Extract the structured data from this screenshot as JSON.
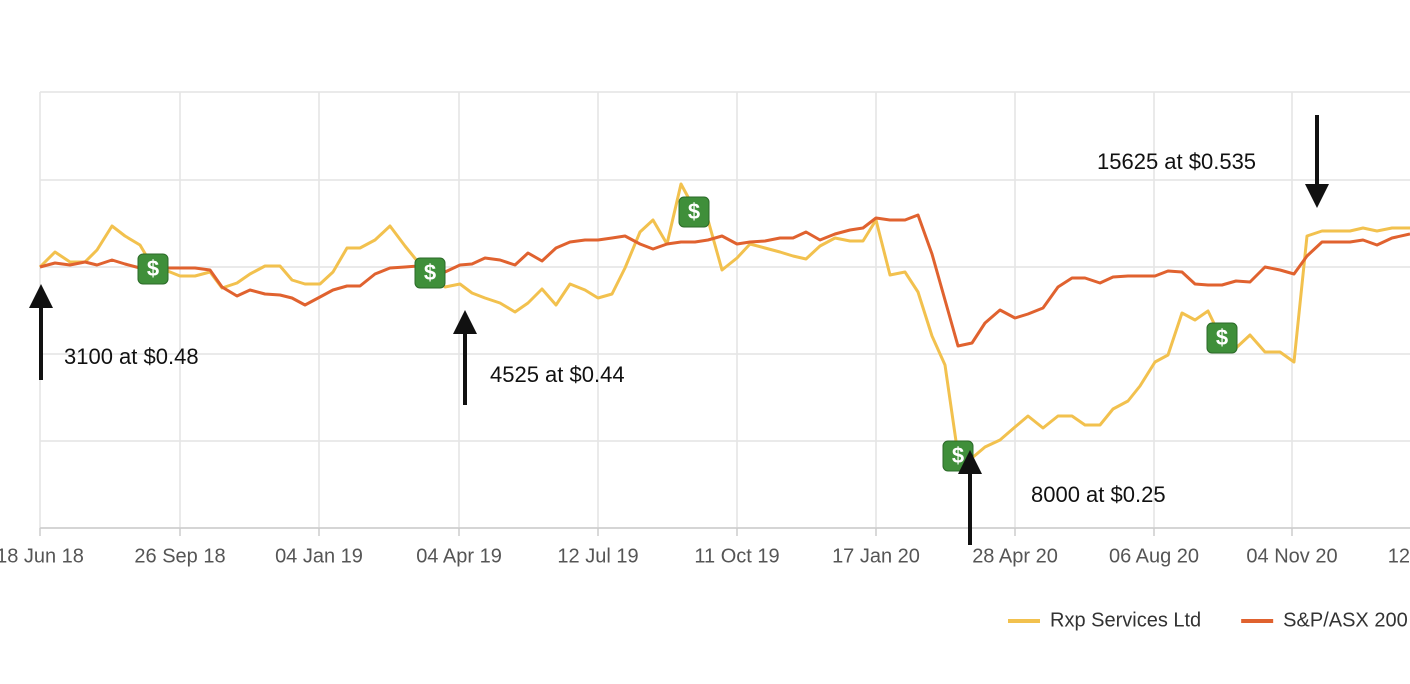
{
  "chart_data": {
    "type": "line",
    "x": [
      0,
      15,
      30,
      45,
      57,
      72,
      85,
      100,
      113,
      125,
      140,
      155,
      170,
      182,
      197,
      210,
      225,
      240,
      252,
      265,
      280,
      293,
      307,
      320,
      335,
      350,
      365,
      378,
      390,
      405,
      420,
      432,
      445,
      460,
      475,
      488,
      502,
      516,
      530,
      545,
      558,
      572,
      585,
      600,
      613,
      627,
      641,
      655,
      668,
      682,
      697,
      710,
      725,
      740,
      753,
      766,
      780,
      795,
      810,
      823,
      836,
      850,
      865,
      878,
      892,
      905,
      918,
      932,
      945,
      960,
      975,
      988,
      1003,
      1018,
      1032,
      1045,
      1060,
      1073,
      1088,
      1100,
      1115,
      1128,
      1142,
      1155,
      1168,
      1182,
      1196,
      1210,
      1225,
      1240,
      1254,
      1267,
      1282,
      1296,
      1310,
      1323,
      1337,
      1352,
      1370
    ],
    "series": [
      {
        "name": "Rxp Services Ltd",
        "color": "#f2c14e",
        "values": [
          261,
          276,
          266,
          266,
          278,
          302,
          292,
          283,
          261,
          258,
          252,
          252,
          256,
          240,
          245,
          254,
          262,
          262,
          248,
          244,
          244,
          256,
          280,
          280,
          288,
          302,
          282,
          266,
          256,
          241,
          244,
          235,
          230,
          225,
          216,
          225,
          239,
          223,
          244,
          238,
          230,
          234,
          260,
          296,
          308,
          284,
          344,
          318,
          308,
          258,
          270,
          284,
          280,
          276,
          272,
          269,
          282,
          290,
          287,
          287,
          308,
          253,
          256,
          236,
          192,
          163,
          73,
          70,
          81,
          88,
          101,
          112,
          100,
          112,
          112,
          103,
          103,
          119,
          127,
          142,
          166,
          173,
          215,
          208,
          217,
          188,
          180,
          193,
          176,
          176,
          166,
          292,
          297,
          297,
          297,
          300,
          297,
          300,
          300
        ]
      },
      {
        "name": "S&P/ASX 200",
        "color": "#e0622f",
        "values": [
          261,
          265,
          263,
          266,
          263,
          268,
          264,
          260,
          260,
          260,
          260,
          260,
          258,
          241,
          232,
          238,
          234,
          233,
          230,
          223,
          231,
          238,
          242,
          242,
          254,
          260,
          261,
          262,
          258,
          256,
          263,
          264,
          270,
          268,
          263,
          275,
          267,
          280,
          286,
          288,
          288,
          290,
          292,
          284,
          279,
          284,
          286,
          286,
          288,
          292,
          284,
          286,
          287,
          290,
          290,
          296,
          288,
          294,
          298,
          300,
          310,
          308,
          308,
          313,
          274,
          228,
          182,
          185,
          205,
          218,
          210,
          214,
          220,
          241,
          250,
          250,
          245,
          251,
          252,
          252,
          252,
          257,
          256,
          244,
          243,
          243,
          247,
          246,
          261,
          258,
          254,
          272,
          286,
          286,
          286,
          288,
          283,
          290,
          294
        ]
      }
    ],
    "xlim": [
      0,
      1370
    ],
    "xticks": [
      {
        "value": 0,
        "label": "18 Jun 18"
      },
      {
        "value": 140,
        "label": "26 Sep 18"
      },
      {
        "value": 279,
        "label": "04 Jan 19"
      },
      {
        "value": 419,
        "label": "04 Apr 19"
      },
      {
        "value": 558,
        "label": "12 Jul 19"
      },
      {
        "value": 697,
        "label": "11 Oct 19"
      },
      {
        "value": 836,
        "label": "17 Jan 20"
      },
      {
        "value": 975,
        "label": "28 Apr 20"
      },
      {
        "value": 1114,
        "label": "06 Aug 20"
      },
      {
        "value": 1252,
        "label": "04 Nov 20"
      },
      {
        "value": 1391,
        "label": "12"
      }
    ],
    "ylim": [
      0,
      436
    ],
    "yticks": [
      0,
      87,
      174,
      261,
      348,
      436
    ],
    "grid": true,
    "legend": "bottom-right",
    "markers": {
      "symbol": "$",
      "color": "#3f8f3a",
      "x": [
        113,
        390,
        654,
        918,
        1182
      ],
      "y": [
        259,
        255,
        316,
        72,
        190
      ]
    },
    "annotations": [
      "3100 at $0.48",
      "4525 at $0.44",
      "8000 at $0.25",
      "15625 at $0.535"
    ]
  }
}
